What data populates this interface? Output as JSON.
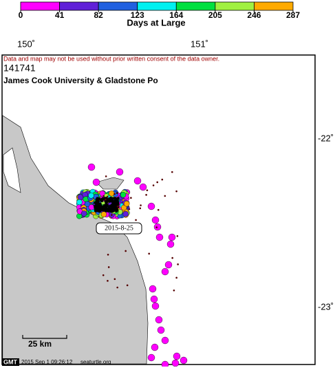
{
  "colorbar": {
    "label": "Days at Large",
    "ticks": [
      0,
      41,
      82,
      123,
      164,
      205,
      246,
      287
    ],
    "colors": [
      "#ff00ff",
      "#6020d8",
      "#2060e0",
      "#00f0f0",
      "#00e040",
      "#a0f040",
      "#ffaa00"
    ]
  },
  "lon_labels": [
    "150˚",
    "151˚"
  ],
  "lat_labels": [
    "-22˚",
    "-23˚"
  ],
  "notice": "Data and map may not be used without prior written consent of the data owner.",
  "tag_id": "141741",
  "owner": "James Cook University & Gladstone Po",
  "date_label": "2015-8-25",
  "scale_label": "25 km",
  "footer": {
    "logo": "GMT",
    "timestamp": "2015 Sep  1 09:26:12",
    "site": "seaturtle.org"
  }
}
